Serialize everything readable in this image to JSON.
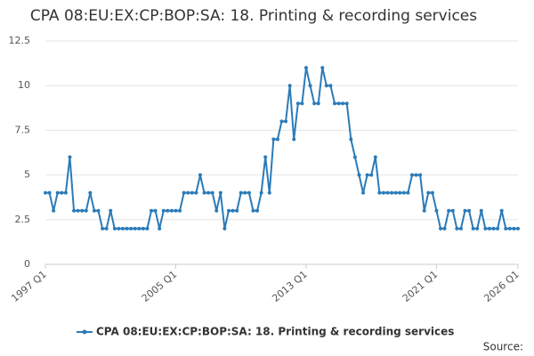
{
  "chart_data": {
    "type": "line",
    "title": "CPA 08:EU:EX:CP:BOP:SA: 18. Printing & recording services",
    "categories": [
      "1997 Q1",
      null,
      null,
      null,
      null,
      null,
      null,
      null,
      null,
      null,
      null,
      null,
      null,
      null,
      null,
      null,
      null,
      null,
      null,
      null,
      null,
      null,
      null,
      null,
      null,
      null,
      null,
      null,
      null,
      null,
      null,
      null,
      "2005 Q1",
      null,
      null,
      null,
      null,
      null,
      null,
      null,
      null,
      null,
      null,
      null,
      null,
      null,
      null,
      null,
      null,
      null,
      null,
      null,
      null,
      null,
      null,
      null,
      null,
      null,
      null,
      null,
      null,
      null,
      null,
      null,
      "2013 Q1",
      null,
      null,
      null,
      null,
      null,
      null,
      null,
      null,
      null,
      null,
      null,
      null,
      null,
      null,
      null,
      null,
      null,
      null,
      null,
      null,
      null,
      null,
      null,
      null,
      null,
      null,
      null,
      null,
      null,
      null,
      null,
      "2021 Q1",
      null,
      null,
      null,
      null,
      null,
      null,
      null,
      null,
      null,
      null,
      null,
      null,
      null,
      null,
      null,
      null,
      null,
      null,
      null,
      "2026 Q1"
    ],
    "series": [
      {
        "name": "CPA 08:EU:EX:CP:BOP:SA: 18. Printing & recording services",
        "color": "#2b7bb9",
        "values": [
          4,
          4,
          3,
          4,
          4,
          4,
          6,
          3,
          3,
          3,
          3,
          4,
          3,
          3,
          2,
          2,
          3,
          2,
          2,
          2,
          2,
          2,
          2,
          2,
          2,
          2,
          3,
          3,
          2,
          3,
          3,
          3,
          3,
          3,
          4,
          4,
          4,
          4,
          5,
          4,
          4,
          4,
          3,
          4,
          2,
          3,
          3,
          3,
          4,
          4,
          4,
          3,
          3,
          4,
          6,
          4,
          7,
          7,
          8,
          8,
          10,
          7,
          9,
          9,
          11,
          10,
          9,
          9,
          11,
          10,
          10,
          9,
          9,
          9,
          9,
          7,
          6,
          5,
          4,
          5,
          5,
          6,
          4,
          4,
          4,
          4,
          4,
          4,
          4,
          4,
          5,
          5,
          5,
          3,
          4,
          4,
          3,
          2,
          2,
          3,
          3,
          2,
          2,
          3,
          3,
          2,
          2,
          3,
          2,
          2,
          2,
          2,
          3,
          2,
          2,
          2,
          2
        ]
      }
    ],
    "ylim": [
      0,
      12.5
    ],
    "yticks": [
      0,
      2.5,
      5,
      7.5,
      10,
      12.5
    ],
    "grid": true,
    "legend": "bottom",
    "source": "Source:"
  }
}
